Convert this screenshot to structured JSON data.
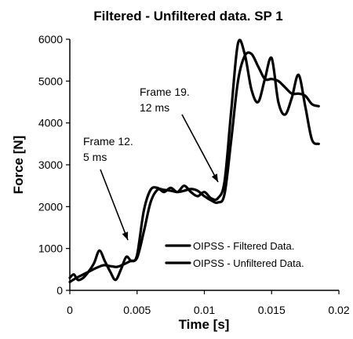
{
  "chart_data": {
    "type": "line",
    "title": "Filtered - Unfiltered data. SP 1",
    "xlabel": "Time [s]",
    "ylabel": "Force [N]",
    "xlim": [
      0,
      0.02
    ],
    "ylim": [
      0,
      6000
    ],
    "xticks": [
      0,
      0.005,
      0.01,
      0.015,
      0.02
    ],
    "xtick_labels": [
      "0",
      "0.005",
      "0.01",
      "0.015",
      "0.02"
    ],
    "yticks": [
      0,
      1000,
      2000,
      3000,
      4000,
      5000,
      6000
    ],
    "ytick_labels": [
      "0",
      "1000",
      "2000",
      "3000",
      "4000",
      "5000",
      "6000"
    ],
    "grid": false,
    "legend_position": "bottom-right",
    "line_color": "#000000",
    "series": [
      {
        "name": "OIPSS - Filtered Data.",
        "x": [
          0,
          0.0005,
          0.001,
          0.0015,
          0.002,
          0.0025,
          0.003,
          0.0035,
          0.004,
          0.0045,
          0.005,
          0.0055,
          0.006,
          0.0065,
          0.007,
          0.0075,
          0.008,
          0.0085,
          0.009,
          0.0095,
          0.01,
          0.0105,
          0.011,
          0.0115,
          0.012,
          0.0125,
          0.013,
          0.0135,
          0.014,
          0.0145,
          0.015,
          0.0155,
          0.016,
          0.0165,
          0.017,
          0.0175,
          0.018,
          0.0185
        ],
        "y": [
          200,
          300,
          380,
          460,
          540,
          600,
          580,
          560,
          620,
          700,
          780,
          1400,
          2100,
          2400,
          2400,
          2380,
          2350,
          2380,
          2420,
          2380,
          2250,
          2150,
          2100,
          2300,
          3600,
          5000,
          5600,
          5650,
          5350,
          5050,
          5050,
          5000,
          4850,
          4700,
          4700,
          4650,
          4450,
          4400
        ]
      },
      {
        "name": "OIPSS - Unfiltered Data.",
        "x": [
          0,
          0.0003,
          0.0006,
          0.001,
          0.0014,
          0.0018,
          0.0022,
          0.0026,
          0.003,
          0.0034,
          0.0038,
          0.0042,
          0.0046,
          0.005,
          0.0055,
          0.006,
          0.0065,
          0.007,
          0.0075,
          0.008,
          0.0085,
          0.009,
          0.0095,
          0.01,
          0.0105,
          0.011,
          0.0115,
          0.012,
          0.0125,
          0.013,
          0.0135,
          0.014,
          0.0145,
          0.015,
          0.0155,
          0.016,
          0.0165,
          0.017,
          0.0175,
          0.018,
          0.0185
        ],
        "y": [
          300,
          380,
          250,
          300,
          450,
          650,
          950,
          700,
          450,
          250,
          500,
          800,
          700,
          850,
          1900,
          2400,
          2450,
          2350,
          2450,
          2350,
          2500,
          2350,
          2250,
          2350,
          2200,
          2200,
          2600,
          4300,
          5900,
          5650,
          4800,
          4500,
          5050,
          5550,
          4500,
          4200,
          4600,
          5150,
          4400,
          3600,
          3500
        ]
      }
    ],
    "annotations": [
      {
        "lines": [
          "Frame 12.",
          "5 ms"
        ],
        "x": 0.0045,
        "y": 1000
      },
      {
        "lines": [
          "Frame 19.",
          "12 ms"
        ],
        "x": 0.011,
        "y": 2400
      }
    ]
  }
}
